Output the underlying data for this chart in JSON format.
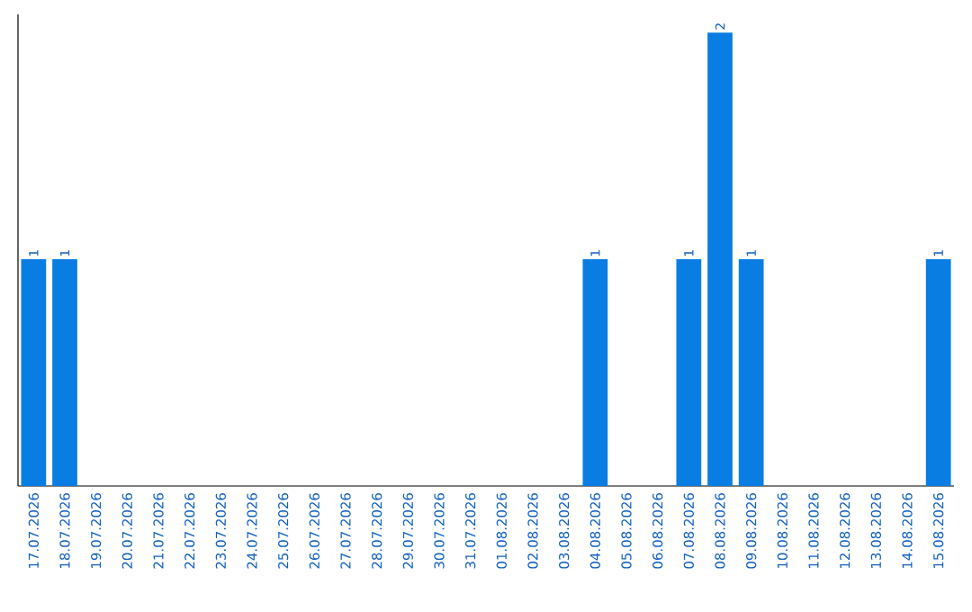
{
  "chart_data": {
    "type": "bar",
    "categories": [
      "17.07.2026",
      "18.07.2026",
      "19.07.2026",
      "20.07.2026",
      "21.07.2026",
      "22.07.2026",
      "23.07.2026",
      "24.07.2026",
      "25.07.2026",
      "26.07.2026",
      "27.07.2026",
      "28.07.2026",
      "29.07.2026",
      "30.07.2026",
      "31.07.2026",
      "01.08.2026",
      "02.08.2026",
      "03.08.2026",
      "04.08.2026",
      "05.08.2026",
      "06.08.2026",
      "07.08.2026",
      "08.08.2026",
      "09.08.2026",
      "10.08.2026",
      "11.08.2026",
      "12.08.2026",
      "13.08.2026",
      "14.08.2026",
      "15.08.2026"
    ],
    "values": [
      1,
      1,
      0,
      0,
      0,
      0,
      0,
      0,
      0,
      0,
      0,
      0,
      0,
      0,
      0,
      0,
      0,
      0,
      1,
      0,
      0,
      1,
      2,
      1,
      0,
      0,
      0,
      0,
      0,
      1
    ],
    "color": "#0a7de3",
    "value_labels": [
      "1",
      "1",
      null,
      null,
      null,
      null,
      null,
      null,
      null,
      null,
      null,
      null,
      null,
      null,
      null,
      null,
      null,
      null,
      "1",
      null,
      null,
      "1",
      "2",
      "1",
      null,
      null,
      null,
      null,
      null,
      "1"
    ]
  }
}
